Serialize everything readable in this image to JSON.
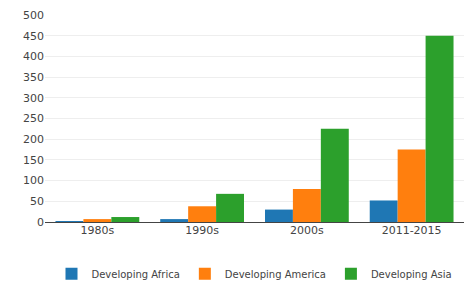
{
  "chart_data": {
    "type": "bar",
    "categories": [
      "1980s",
      "1990s",
      "2000s",
      "2011-2015"
    ],
    "series": [
      {
        "name": "Developing Africa",
        "values": [
          2,
          7,
          30,
          52
        ]
      },
      {
        "name": "Developing America",
        "values": [
          7,
          38,
          80,
          175
        ]
      },
      {
        "name": "Developing Asia",
        "values": [
          12,
          68,
          225,
          450
        ]
      }
    ],
    "ylim": [
      0,
      500
    ],
    "yticks": [
      0,
      50,
      100,
      150,
      200,
      250,
      300,
      350,
      400,
      450,
      500
    ],
    "grid": true,
    "legend": "bottom"
  }
}
